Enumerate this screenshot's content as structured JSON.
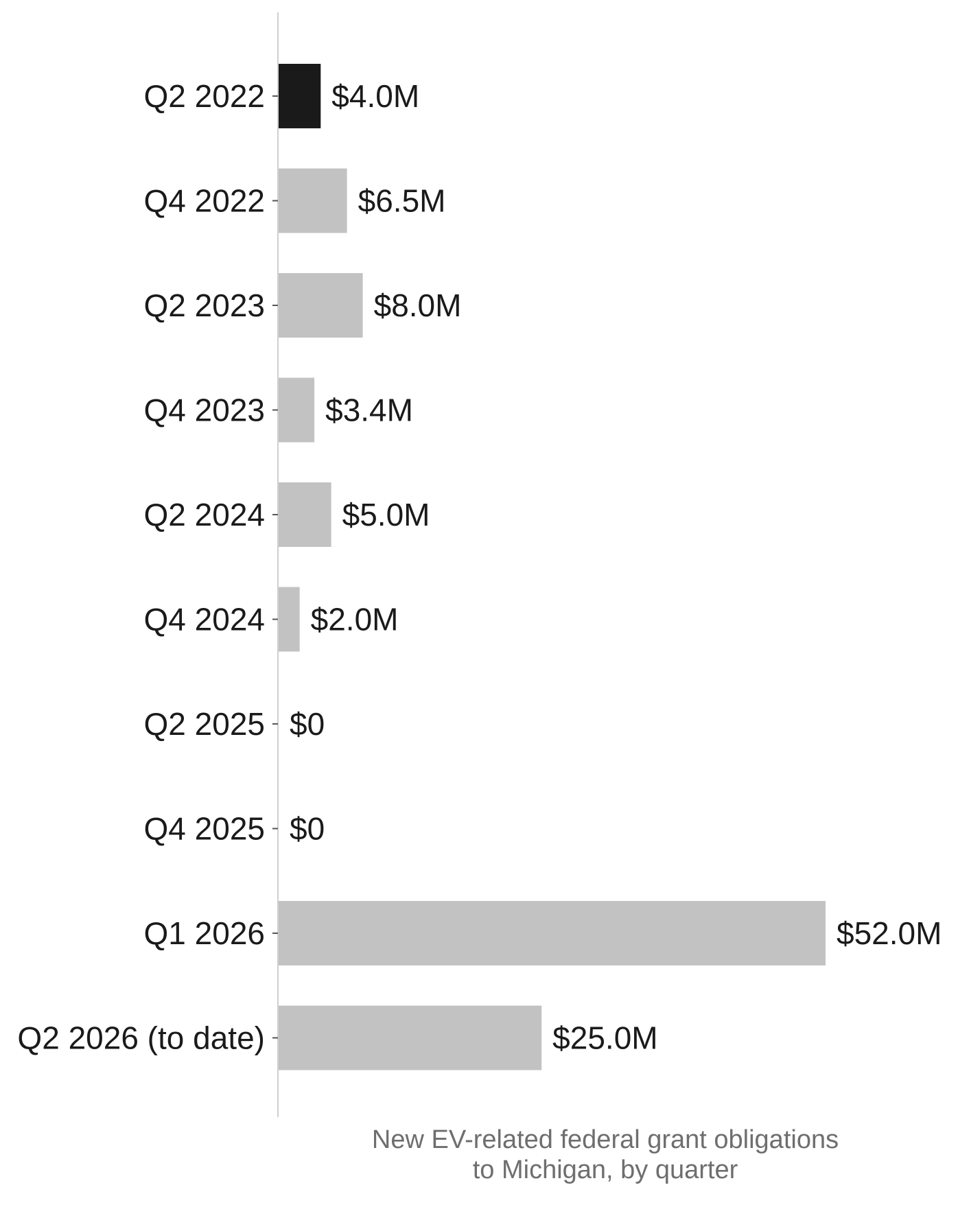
{
  "chart_data": {
    "type": "bar",
    "orientation": "horizontal",
    "categories": [
      "Q2 2022",
      "Q4 2022",
      "Q2 2023",
      "Q4 2023",
      "Q2 2024",
      "Q4 2024",
      "Q2 2025",
      "Q4 2025",
      "Q1 2026",
      "Q2 2026 (to date)"
    ],
    "values": [
      4.0,
      6.5,
      8.0,
      3.4,
      5.0,
      2.0,
      0,
      0,
      52.0,
      25.0
    ],
    "value_labels": [
      "$4.0M",
      "$6.5M",
      "$8.0M",
      "$3.4M",
      "$5.0M",
      "$2.0M",
      "$0",
      "$0",
      "$52.0M",
      "$25.0M"
    ],
    "unit": "$M",
    "highlight_index": 0,
    "colors": {
      "highlight": "#1a1a1a",
      "bar": "#c2c2c2",
      "axis": "#d0d0d0",
      "text": "#1a1a1a",
      "caption": "#6e6e6e"
    },
    "caption": [
      "New EV-related federal grant obligations",
      "to Michigan, by quarter"
    ],
    "xlim": [
      0,
      52
    ],
    "grid": false,
    "legend": "none"
  }
}
